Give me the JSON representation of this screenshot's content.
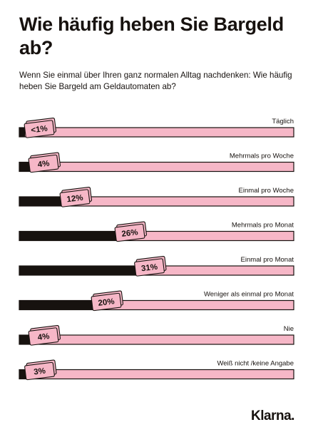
{
  "header": {
    "title": "Wie häufig heben Sie Bargeld ab?",
    "subtitle": "Wenn Sie einmal über Ihren ganz normalen Alltag nachdenken: Wie häufig heben Sie Bargeld am Geldautomaten ab?"
  },
  "brand": {
    "logo": "Klarna."
  },
  "colors": {
    "bar_fill": "#17120f",
    "track": "#f6b7c7",
    "tag": "#f6b7c7",
    "text": "#17120f"
  },
  "chart_data": {
    "type": "bar",
    "orientation": "horizontal",
    "categories": [
      "Täglich",
      "Mehrmals pro Woche",
      "Einmal pro Woche",
      "Mehrmals pro Monat",
      "Einmal pro Monat",
      "Weniger als einmal pro Monat",
      "Nie",
      "Weiß nicht /keine Angabe"
    ],
    "values": [
      0.5,
      4,
      12,
      26,
      31,
      20,
      4,
      3
    ],
    "labels": [
      "<1%",
      "4%",
      "12%",
      "26%",
      "31%",
      "20%",
      "4%",
      "3%"
    ],
    "xlim": [
      0,
      70
    ],
    "unit": "%",
    "legend": "none",
    "grid": false
  }
}
